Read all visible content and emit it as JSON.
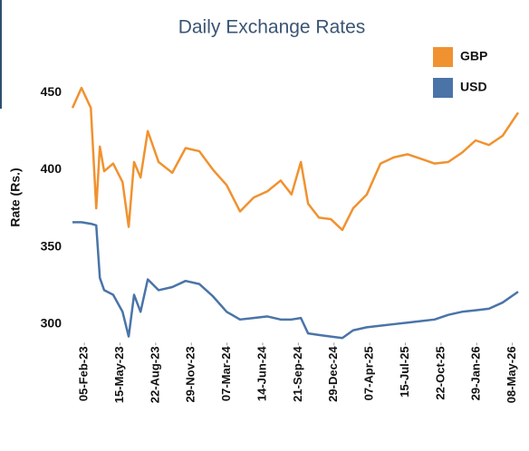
{
  "chart_data": {
    "type": "line",
    "title": "Daily Exchange Rates",
    "ylabel": "Rate (Rs.)",
    "x": [
      "2023-01-03",
      "2023-01-28",
      "2023-02-23",
      "2023-03-10",
      "2023-03-20",
      "2023-04-01",
      "2023-04-26",
      "2023-05-22",
      "2023-06-08",
      "2023-06-23",
      "2023-07-11",
      "2023-07-31",
      "2023-08-30",
      "2023-10-07",
      "2023-11-13",
      "2023-12-21",
      "2024-01-28",
      "2024-03-06",
      "2024-04-12",
      "2024-05-20",
      "2024-06-27",
      "2024-08-03",
      "2024-09-02",
      "2024-09-28",
      "2024-10-18",
      "2024-11-17",
      "2024-12-20",
      "2025-01-21",
      "2025-02-20",
      "2025-03-30",
      "2025-05-07",
      "2025-06-13",
      "2025-07-21",
      "2025-08-28",
      "2025-10-04",
      "2025-11-11",
      "2025-12-19",
      "2026-01-26",
      "2026-03-04",
      "2026-04-11",
      "2026-05-24"
    ],
    "series": [
      {
        "name": "GBP",
        "color": "#f0922f",
        "values": [
          440,
          453,
          440,
          375,
          415,
          399,
          404,
          392,
          363,
          405,
          395,
          425,
          405,
          398,
          414,
          412,
          400,
          390,
          373,
          382,
          386,
          393,
          384,
          405,
          378,
          369,
          368,
          361,
          375,
          384,
          404,
          408,
          410,
          407,
          404,
          405,
          411,
          419,
          416,
          422,
          437
        ]
      },
      {
        "name": "USD",
        "color": "#4a74a8",
        "values": [
          366,
          366,
          365,
          364,
          330,
          322,
          319,
          308,
          292,
          319,
          308,
          329,
          322,
          324,
          328,
          326,
          318,
          308,
          303,
          304,
          305,
          303,
          303,
          304,
          294,
          293,
          292,
          291,
          296,
          298,
          299,
          300,
          301,
          302,
          303,
          306,
          308,
          309,
          310,
          314,
          321
        ]
      }
    ],
    "xlim": [
      "2023-01-03",
      "2026-05-24"
    ],
    "xticks": [
      {
        "value": "2023-02-05",
        "label": "05-Feb-23"
      },
      {
        "value": "2023-05-15",
        "label": "15-May-23"
      },
      {
        "value": "2023-08-22",
        "label": "22-Aug-23"
      },
      {
        "value": "2023-11-29",
        "label": "29-Nov-23"
      },
      {
        "value": "2024-03-07",
        "label": "07-Mar-24"
      },
      {
        "value": "2024-06-14",
        "label": "14-Jun-24"
      },
      {
        "value": "2024-09-21",
        "label": "21-Sep-24"
      },
      {
        "value": "2024-12-29",
        "label": "29-Dec-24"
      },
      {
        "value": "2025-04-07",
        "label": "07-Apr-25"
      },
      {
        "value": "2025-07-15",
        "label": "15-Jul-25"
      },
      {
        "value": "2025-10-22",
        "label": "22-Oct-25"
      },
      {
        "value": "2026-01-29",
        "label": "29-Jan-26"
      },
      {
        "value": "2026-05-08",
        "label": "08-May-26"
      }
    ],
    "ylim": [
      288,
      475
    ],
    "yticks": [
      300,
      350,
      400,
      450
    ],
    "grid": false,
    "legend": "upper right"
  }
}
